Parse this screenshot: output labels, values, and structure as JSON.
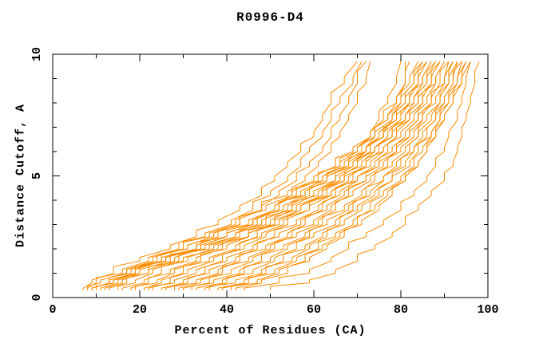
{
  "chart_data": {
    "type": "line",
    "title": "R0996-D4",
    "xlabel": "Percent of Residues (CA)",
    "ylabel": "Distance Cutoff, A",
    "xlim": [
      0,
      100
    ],
    "ylim": [
      0,
      10
    ],
    "grid": false,
    "legend": false,
    "line_color": "#FF8C00",
    "x_ticks_major": [
      0,
      20,
      40,
      60,
      80,
      100
    ],
    "x_ticks_minor": [
      10,
      30,
      50,
      70,
      90
    ],
    "y_ticks_major": [
      0,
      5,
      10
    ],
    "y_ticks_minor": [
      1,
      2,
      3,
      4,
      6,
      7,
      8,
      9
    ],
    "cutoffs": [
      0.3,
      0.6,
      1.0,
      1.5,
      2.0,
      2.5,
      3.0,
      3.6,
      4.2,
      4.8,
      5.4,
      6.0,
      6.6,
      7.3,
      8.0,
      8.8,
      9.7
    ],
    "series_percent": [
      [
        7,
        9,
        14,
        20,
        27,
        33,
        38,
        43,
        48,
        51,
        54,
        57,
        60,
        62,
        64,
        67,
        70
      ],
      [
        8,
        10,
        16,
        22,
        29,
        35,
        41,
        46,
        50,
        54,
        57,
        59,
        62,
        64,
        66,
        69,
        71
      ],
      [
        8,
        11,
        17,
        24,
        31,
        37,
        43,
        48,
        52,
        56,
        59,
        62,
        64,
        66,
        68,
        70,
        72
      ],
      [
        9,
        13,
        19,
        26,
        34,
        40,
        46,
        51,
        55,
        58,
        61,
        64,
        66,
        68,
        70,
        72,
        73
      ],
      [
        9,
        13,
        18,
        25,
        33,
        40,
        46,
        52,
        57,
        62,
        66,
        70,
        73,
        75,
        77,
        79,
        80
      ],
      [
        10,
        14,
        20,
        27,
        35,
        42,
        49,
        55,
        60,
        65,
        69,
        72,
        74,
        77,
        79,
        81,
        82
      ],
      [
        11,
        15,
        22,
        30,
        38,
        45,
        51,
        57,
        62,
        66,
        70,
        73,
        76,
        78,
        80,
        81,
        81
      ],
      [
        9,
        13,
        17,
        23,
        30,
        36,
        42,
        48,
        54,
        60,
        65,
        69,
        73,
        76,
        79,
        82,
        84
      ],
      [
        10,
        14,
        19,
        25,
        31,
        37,
        43,
        49,
        55,
        61,
        66,
        70,
        74,
        77,
        80,
        83,
        85
      ],
      [
        12,
        16,
        20,
        26,
        33,
        38,
        45,
        51,
        56,
        62,
        67,
        71,
        74,
        78,
        81,
        83,
        85
      ],
      [
        13,
        17,
        22,
        28,
        34,
        40,
        46,
        52,
        58,
        63,
        68,
        72,
        75,
        79,
        81,
        84,
        86
      ],
      [
        15,
        19,
        23,
        29,
        36,
        42,
        47,
        53,
        58,
        63,
        68,
        72,
        76,
        79,
        82,
        84,
        86
      ],
      [
        16,
        21,
        25,
        31,
        37,
        43,
        48,
        54,
        59,
        65,
        69,
        73,
        76,
        80,
        82,
        85,
        87
      ],
      [
        18,
        22,
        27,
        33,
        39,
        45,
        50,
        55,
        61,
        66,
        70,
        74,
        77,
        80,
        83,
        85,
        87
      ],
      [
        19,
        24,
        28,
        34,
        40,
        45,
        51,
        56,
        62,
        67,
        71,
        74,
        78,
        81,
        83,
        86,
        88
      ],
      [
        21,
        25,
        30,
        36,
        42,
        47,
        52,
        57,
        63,
        67,
        72,
        75,
        78,
        81,
        84,
        86,
        88
      ],
      [
        22,
        27,
        31,
        37,
        43,
        48,
        53,
        59,
        64,
        68,
        72,
        76,
        79,
        82,
        84,
        87,
        89
      ],
      [
        23,
        28,
        33,
        39,
        44,
        49,
        54,
        59,
        64,
        69,
        73,
        76,
        79,
        82,
        85,
        87,
        89
      ],
      [
        25,
        30,
        35,
        40,
        46,
        51,
        56,
        61,
        65,
        70,
        74,
        77,
        80,
        83,
        85,
        88,
        90
      ],
      [
        26,
        31,
        36,
        42,
        47,
        52,
        57,
        62,
        66,
        70,
        75,
        78,
        81,
        84,
        86,
        88,
        90
      ],
      [
        28,
        33,
        38,
        43,
        49,
        54,
        58,
        63,
        67,
        72,
        75,
        79,
        82,
        84,
        87,
        89,
        91
      ],
      [
        29,
        34,
        39,
        45,
        50,
        55,
        60,
        64,
        68,
        72,
        76,
        79,
        82,
        85,
        87,
        90,
        91
      ],
      [
        30,
        36,
        41,
        46,
        51,
        56,
        61,
        65,
        69,
        73,
        77,
        80,
        83,
        85,
        88,
        90,
        92
      ],
      [
        32,
        37,
        43,
        48,
        53,
        58,
        62,
        67,
        71,
        74,
        78,
        81,
        84,
        86,
        89,
        91,
        92
      ],
      [
        33,
        39,
        44,
        50,
        54,
        59,
        63,
        68,
        72,
        76,
        79,
        82,
        84,
        87,
        89,
        91,
        93
      ],
      [
        35,
        40,
        46,
        51,
        56,
        60,
        65,
        69,
        73,
        76,
        80,
        83,
        85,
        88,
        90,
        92,
        93
      ],
      [
        36,
        42,
        48,
        53,
        58,
        62,
        66,
        70,
        74,
        78,
        81,
        83,
        86,
        88,
        90,
        92,
        94
      ],
      [
        38,
        44,
        49,
        55,
        59,
        63,
        67,
        71,
        75,
        78,
        82,
        84,
        87,
        89,
        91,
        93,
        94
      ],
      [
        39,
        45,
        51,
        56,
        61,
        65,
        69,
        73,
        76,
        80,
        83,
        85,
        87,
        89,
        91,
        93,
        95
      ],
      [
        41,
        47,
        52,
        58,
        62,
        66,
        70,
        74,
        77,
        81,
        84,
        86,
        88,
        90,
        92,
        94,
        95
      ],
      [
        42,
        48,
        54,
        59,
        63,
        67,
        71,
        75,
        78,
        81,
        84,
        86,
        88,
        90,
        92,
        94,
        96
      ],
      [
        44,
        52,
        59,
        64,
        68,
        72,
        76,
        80,
        83,
        86,
        88,
        90,
        91,
        93,
        94,
        95,
        96
      ],
      [
        50,
        59,
        65,
        70,
        74,
        78,
        81,
        84,
        87,
        90,
        92,
        93,
        94,
        95,
        96,
        97,
        98
      ]
    ]
  }
}
